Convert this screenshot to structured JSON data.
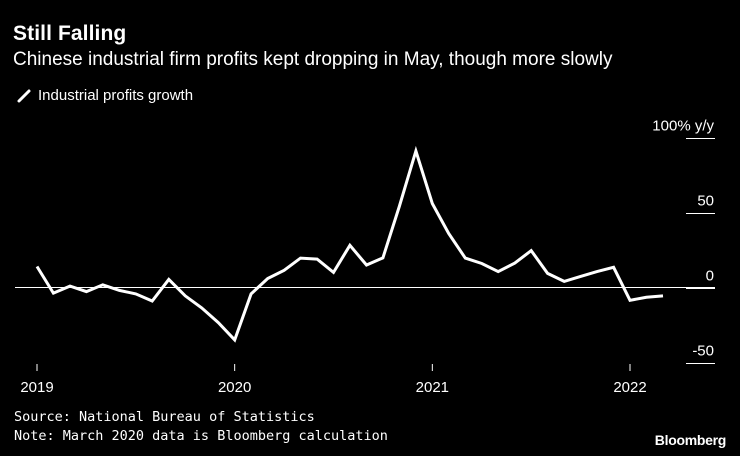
{
  "title": "Still Falling",
  "subtitle": "Chinese industrial firm profits kept dropping in May, though more slowly",
  "legend": {
    "label": "Industrial profits growth",
    "color": "#ffffff"
  },
  "source": "Source: National Bureau of Statistics",
  "note": "Note: March 2020 data is Bloomberg calculation",
  "brand": "Bloomberg",
  "chart_data": {
    "type": "line",
    "title": "Still Falling",
    "ylabel": "100% y/y",
    "ylim": [
      -50,
      100
    ],
    "yticks": [
      100,
      50,
      0,
      -50
    ],
    "ytick_labels": [
      "100% y/y",
      "50",
      "0",
      "-50"
    ],
    "xlim": [
      2019.0,
      2022.5
    ],
    "xticks": [
      2019,
      2020,
      2021,
      2022
    ],
    "xtick_labels": [
      "2019",
      "2020",
      "2021",
      "2022"
    ],
    "grid": false,
    "zero_line": true,
    "series": [
      {
        "name": "Industrial profits growth",
        "color": "#ffffff",
        "x": [
          2019.0,
          2019.083,
          2019.167,
          2019.25,
          2019.333,
          2019.417,
          2019.5,
          2019.583,
          2019.667,
          2019.75,
          2019.833,
          2019.917,
          2020.0,
          2020.083,
          2020.167,
          2020.25,
          2020.333,
          2020.417,
          2020.5,
          2020.583,
          2020.667,
          2020.75,
          2020.833,
          2020.917,
          2021.0,
          2021.083,
          2021.167,
          2021.25,
          2021.333,
          2021.417,
          2021.5,
          2021.583,
          2021.667,
          2021.75,
          2021.833,
          2021.917,
          2022.0,
          2022.083,
          2022.167
        ],
        "values": [
          14,
          -3.7,
          0.9,
          -2.7,
          1.8,
          -1.9,
          -4.3,
          -9.0,
          5.4,
          -5.6,
          -13.6,
          -23.4,
          -34.9,
          -4.3,
          6.0,
          11.5,
          19.6,
          18.9,
          10.1,
          28.1,
          15.0,
          19.7,
          54.0,
          91.0,
          56.0,
          36.0,
          19.6,
          16.0,
          10.6,
          16.3,
          24.6,
          9.4,
          4.1,
          7.4,
          10.6,
          13.5,
          -8.5,
          -6.5,
          -5.6
        ]
      }
    ]
  }
}
